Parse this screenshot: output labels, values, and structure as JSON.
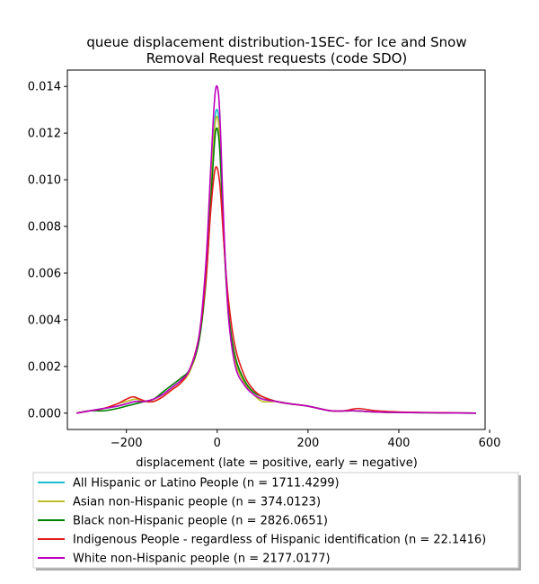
{
  "chart_data": {
    "type": "line",
    "title_line1": "queue displacement distribution-1SEC-  for Ice and Snow",
    "title_line2": "Removal Request  requests (code SDO)",
    "xlabel": "displacement (late = positive, early = negative)",
    "ylabel": "",
    "xlim": [
      -330,
      590
    ],
    "ylim": [
      -0.0007,
      0.0147
    ],
    "xticks": [
      -200,
      0,
      200,
      400,
      600
    ],
    "xtick_labels": [
      "−200",
      "0",
      "200",
      "400",
      "600"
    ],
    "yticks": [
      0.0,
      0.002,
      0.004,
      0.006,
      0.008,
      0.01,
      0.012,
      0.014
    ],
    "ytick_labels": [
      "0.000",
      "0.002",
      "0.004",
      "0.006",
      "0.008",
      "0.010",
      "0.012",
      "0.014"
    ],
    "legend_position": "bottom, below axes",
    "series": [
      {
        "name": "All Hispanic or Latino People (n = 1711.4299)",
        "color": "#17becf",
        "x": [
          -310,
          -280,
          -250,
          -220,
          -200,
          -180,
          -160,
          -140,
          -120,
          -100,
          -80,
          -60,
          -40,
          -25,
          -15,
          -8,
          -4,
          0,
          4,
          8,
          15,
          25,
          40,
          60,
          80,
          100,
          130,
          160,
          200,
          250,
          300,
          350,
          400,
          450,
          500,
          570
        ],
        "y": [
          0.0,
          0.0001,
          0.0002,
          0.0003,
          0.0004,
          0.0005,
          0.0005,
          0.0006,
          0.0008,
          0.0011,
          0.0014,
          0.0019,
          0.0032,
          0.006,
          0.0095,
          0.0118,
          0.0128,
          0.013,
          0.0125,
          0.011,
          0.0075,
          0.0042,
          0.0022,
          0.0013,
          0.0008,
          0.0006,
          0.0005,
          0.0004,
          0.0003,
          0.0001,
          0.0001,
          5e-05,
          3e-05,
          2e-05,
          1e-05,
          0.0
        ]
      },
      {
        "name": "Asian non-Hispanic people (n = 374.0123)",
        "color": "#bcbd22",
        "x": [
          -310,
          -280,
          -250,
          -220,
          -200,
          -180,
          -160,
          -140,
          -120,
          -100,
          -80,
          -60,
          -40,
          -25,
          -15,
          -8,
          -4,
          0,
          4,
          8,
          15,
          25,
          40,
          60,
          80,
          100,
          130,
          160,
          200,
          250,
          300,
          350,
          400,
          450,
          500,
          570
        ],
        "y": [
          0.0,
          0.0001,
          0.0002,
          0.0004,
          0.0005,
          0.0006,
          0.0005,
          0.0005,
          0.0007,
          0.001,
          0.0013,
          0.0018,
          0.0031,
          0.0058,
          0.0093,
          0.0116,
          0.0125,
          0.0127,
          0.0122,
          0.0108,
          0.0074,
          0.0041,
          0.0022,
          0.0013,
          0.0008,
          0.0005,
          0.0005,
          0.0004,
          0.0003,
          0.0001,
          0.0001,
          5e-05,
          3e-05,
          2e-05,
          1e-05,
          0.0
        ]
      },
      {
        "name": "Black non-Hispanic people (n = 2826.0651)",
        "color": "#008000",
        "x": [
          -310,
          -280,
          -250,
          -220,
          -200,
          -180,
          -160,
          -140,
          -120,
          -100,
          -80,
          -60,
          -40,
          -25,
          -15,
          -8,
          -4,
          0,
          4,
          8,
          15,
          25,
          40,
          60,
          80,
          100,
          130,
          160,
          200,
          250,
          300,
          350,
          400,
          450,
          500,
          570
        ],
        "y": [
          0.0,
          0.0001,
          0.0001,
          0.0002,
          0.0003,
          0.0004,
          0.0005,
          0.0006,
          0.0009,
          0.0012,
          0.0015,
          0.0019,
          0.0031,
          0.0056,
          0.0088,
          0.011,
          0.012,
          0.0122,
          0.0117,
          0.0104,
          0.0073,
          0.0043,
          0.0024,
          0.0014,
          0.0009,
          0.0007,
          0.0005,
          0.0004,
          0.0003,
          0.0001,
          0.0001,
          5e-05,
          3e-05,
          2e-05,
          1e-05,
          0.0
        ]
      },
      {
        "name": "Indigenous People - regardless of Hispanic identification (n = 22.1416)",
        "color": "#e31a1c",
        "x": [
          -310,
          -280,
          -250,
          -220,
          -200,
          -185,
          -170,
          -155,
          -140,
          -120,
          -100,
          -80,
          -60,
          -40,
          -25,
          -15,
          -8,
          -4,
          0,
          4,
          8,
          15,
          25,
          40,
          60,
          80,
          100,
          130,
          160,
          200,
          250,
          280,
          310,
          350,
          400,
          450,
          500,
          570
        ],
        "y": [
          0.0,
          0.0001,
          0.0002,
          0.0004,
          0.0006,
          0.0007,
          0.0006,
          0.0005,
          0.0005,
          0.0007,
          0.001,
          0.0013,
          0.0019,
          0.0033,
          0.0057,
          0.0085,
          0.01,
          0.0105,
          0.0105,
          0.0101,
          0.0093,
          0.0072,
          0.0048,
          0.0028,
          0.0016,
          0.001,
          0.0007,
          0.0005,
          0.0004,
          0.0003,
          0.0001,
          0.0001,
          0.0002,
          0.0001,
          5e-05,
          3e-05,
          2e-05,
          0.0
        ]
      },
      {
        "name": "White non-Hispanic people (n = 2177.0177)",
        "color": "#bf00bf",
        "x": [
          -310,
          -280,
          -250,
          -220,
          -200,
          -180,
          -160,
          -140,
          -120,
          -100,
          -80,
          -60,
          -40,
          -25,
          -15,
          -8,
          -4,
          0,
          4,
          8,
          15,
          25,
          40,
          60,
          80,
          100,
          130,
          160,
          200,
          250,
          300,
          350,
          400,
          450,
          500,
          570
        ],
        "y": [
          0.0,
          0.0001,
          0.0002,
          0.0003,
          0.0004,
          0.0005,
          0.0005,
          0.0006,
          0.0008,
          0.0011,
          0.0014,
          0.0019,
          0.0033,
          0.0064,
          0.0102,
          0.0128,
          0.0138,
          0.014,
          0.0134,
          0.0117,
          0.0078,
          0.0041,
          0.002,
          0.0012,
          0.0008,
          0.0006,
          0.0005,
          0.0004,
          0.0003,
          0.0001,
          0.0001,
          5e-05,
          3e-05,
          2e-05,
          1e-05,
          0.0
        ]
      }
    ]
  }
}
